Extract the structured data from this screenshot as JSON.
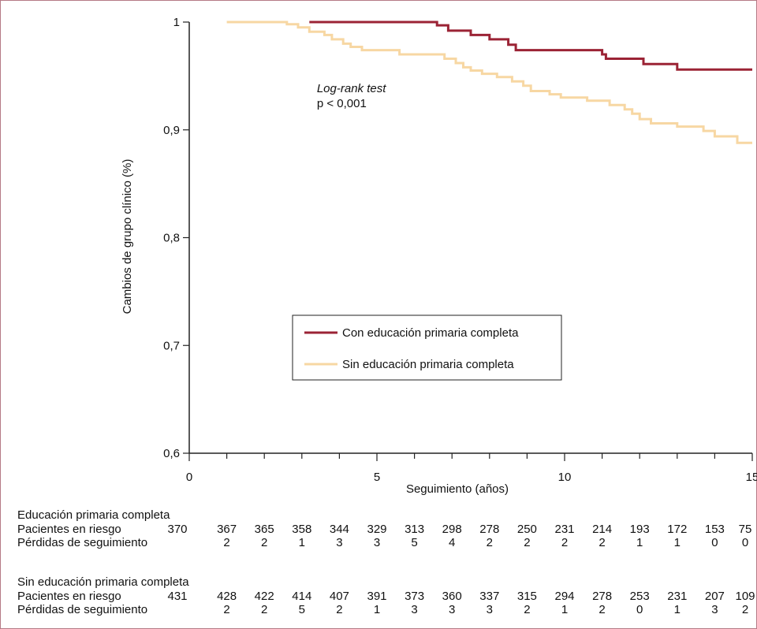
{
  "colors": {
    "with_primary": "#9b2335",
    "without_primary": "#f7d7a3",
    "axis": "#222222",
    "frame": "#b57a86"
  },
  "chart_data": {
    "type": "line",
    "step": true,
    "xlabel": "Seguimiento (años)",
    "ylabel": "Cambios de grupo clínico (%)",
    "xlim": [
      0,
      15
    ],
    "ylim": [
      0.6,
      1.0
    ],
    "x_ticks": [
      0,
      5,
      10,
      15
    ],
    "x_tick_labels": [
      "0",
      "5",
      "10",
      "15"
    ],
    "y_ticks": [
      0.6,
      0.7,
      0.8,
      0.9,
      1.0
    ],
    "y_tick_labels": [
      "0,6",
      "0,7",
      "0,8",
      "0,9",
      "1"
    ],
    "grid": false,
    "legend_position": "center",
    "annotation": {
      "italic": "Log-rank test",
      "text": "p < 0,001",
      "x": 3.4,
      "y": 0.921
    },
    "series": [
      {
        "name": "Con educación primaria completa",
        "color": "#9b2335",
        "points": [
          [
            3.2,
            1.0
          ],
          [
            6.6,
            1.0
          ],
          [
            6.6,
            0.997
          ],
          [
            6.9,
            0.997
          ],
          [
            6.9,
            0.992
          ],
          [
            7.5,
            0.992
          ],
          [
            7.5,
            0.988
          ],
          [
            8.0,
            0.988
          ],
          [
            8.0,
            0.984
          ],
          [
            8.5,
            0.984
          ],
          [
            8.5,
            0.979
          ],
          [
            8.7,
            0.979
          ],
          [
            8.7,
            0.974
          ],
          [
            11.0,
            0.974
          ],
          [
            11.0,
            0.97
          ],
          [
            11.1,
            0.97
          ],
          [
            11.1,
            0.966
          ],
          [
            12.1,
            0.966
          ],
          [
            12.1,
            0.961
          ],
          [
            13.0,
            0.961
          ],
          [
            13.0,
            0.956
          ],
          [
            15.0,
            0.956
          ]
        ]
      },
      {
        "name": "Sin educación primaria completa",
        "color": "#f7d7a3",
        "points": [
          [
            1.0,
            1.0
          ],
          [
            2.6,
            1.0
          ],
          [
            2.6,
            0.998
          ],
          [
            2.9,
            0.998
          ],
          [
            2.9,
            0.995
          ],
          [
            3.2,
            0.995
          ],
          [
            3.2,
            0.991
          ],
          [
            3.6,
            0.991
          ],
          [
            3.6,
            0.988
          ],
          [
            3.8,
            0.988
          ],
          [
            3.8,
            0.984
          ],
          [
            4.1,
            0.984
          ],
          [
            4.1,
            0.98
          ],
          [
            4.3,
            0.98
          ],
          [
            4.3,
            0.977
          ],
          [
            4.6,
            0.977
          ],
          [
            4.6,
            0.974
          ],
          [
            5.6,
            0.974
          ],
          [
            5.6,
            0.97
          ],
          [
            6.8,
            0.97
          ],
          [
            6.8,
            0.966
          ],
          [
            7.1,
            0.966
          ],
          [
            7.1,
            0.962
          ],
          [
            7.3,
            0.962
          ],
          [
            7.3,
            0.958
          ],
          [
            7.5,
            0.958
          ],
          [
            7.5,
            0.955
          ],
          [
            7.8,
            0.955
          ],
          [
            7.8,
            0.952
          ],
          [
            8.2,
            0.952
          ],
          [
            8.2,
            0.949
          ],
          [
            8.6,
            0.949
          ],
          [
            8.6,
            0.945
          ],
          [
            8.9,
            0.945
          ],
          [
            8.9,
            0.941
          ],
          [
            9.1,
            0.941
          ],
          [
            9.1,
            0.936
          ],
          [
            9.6,
            0.936
          ],
          [
            9.6,
            0.933
          ],
          [
            9.9,
            0.933
          ],
          [
            9.9,
            0.93
          ],
          [
            10.6,
            0.93
          ],
          [
            10.6,
            0.927
          ],
          [
            11.2,
            0.927
          ],
          [
            11.2,
            0.923
          ],
          [
            11.6,
            0.923
          ],
          [
            11.6,
            0.919
          ],
          [
            11.8,
            0.919
          ],
          [
            11.8,
            0.915
          ],
          [
            12.0,
            0.915
          ],
          [
            12.0,
            0.91
          ],
          [
            12.3,
            0.91
          ],
          [
            12.3,
            0.906
          ],
          [
            13.0,
            0.906
          ],
          [
            13.0,
            0.903
          ],
          [
            13.7,
            0.903
          ],
          [
            13.7,
            0.899
          ],
          [
            14.0,
            0.899
          ],
          [
            14.0,
            0.894
          ],
          [
            14.6,
            0.894
          ],
          [
            14.6,
            0.888
          ],
          [
            15.0,
            0.888
          ]
        ]
      }
    ]
  },
  "risk_table": {
    "columns_x": [
      0,
      1,
      2,
      3,
      4,
      5,
      6,
      7,
      8,
      9,
      10,
      11,
      12,
      13,
      14,
      15
    ],
    "groups": [
      {
        "title": "Educación primaria completa",
        "at_risk_label": "Pacientes en riesgo",
        "lost_label": "Pérdidas de seguimiento",
        "at_risk": [
          "370",
          "367",
          "365",
          "358",
          "344",
          "329",
          "313",
          "298",
          "278",
          "250",
          "231",
          "214",
          "193",
          "172",
          "153",
          "75"
        ],
        "lost": [
          "",
          "2",
          "2",
          "1",
          "3",
          "3",
          "5",
          "4",
          "2",
          "2",
          "2",
          "2",
          "1",
          "1",
          "0",
          "0"
        ]
      },
      {
        "title": "Sin educación primaria completa",
        "at_risk_label": "Pacientes en riesgo",
        "lost_label": "Pérdidas de seguimiento",
        "at_risk": [
          "431",
          "428",
          "422",
          "414",
          "407",
          "391",
          "373",
          "360",
          "337",
          "315",
          "294",
          "278",
          "253",
          "231",
          "207",
          "109"
        ],
        "lost": [
          "",
          "2",
          "2",
          "5",
          "2",
          "1",
          "3",
          "3",
          "3",
          "2",
          "1",
          "2",
          "0",
          "1",
          "3",
          "2"
        ]
      }
    ]
  }
}
